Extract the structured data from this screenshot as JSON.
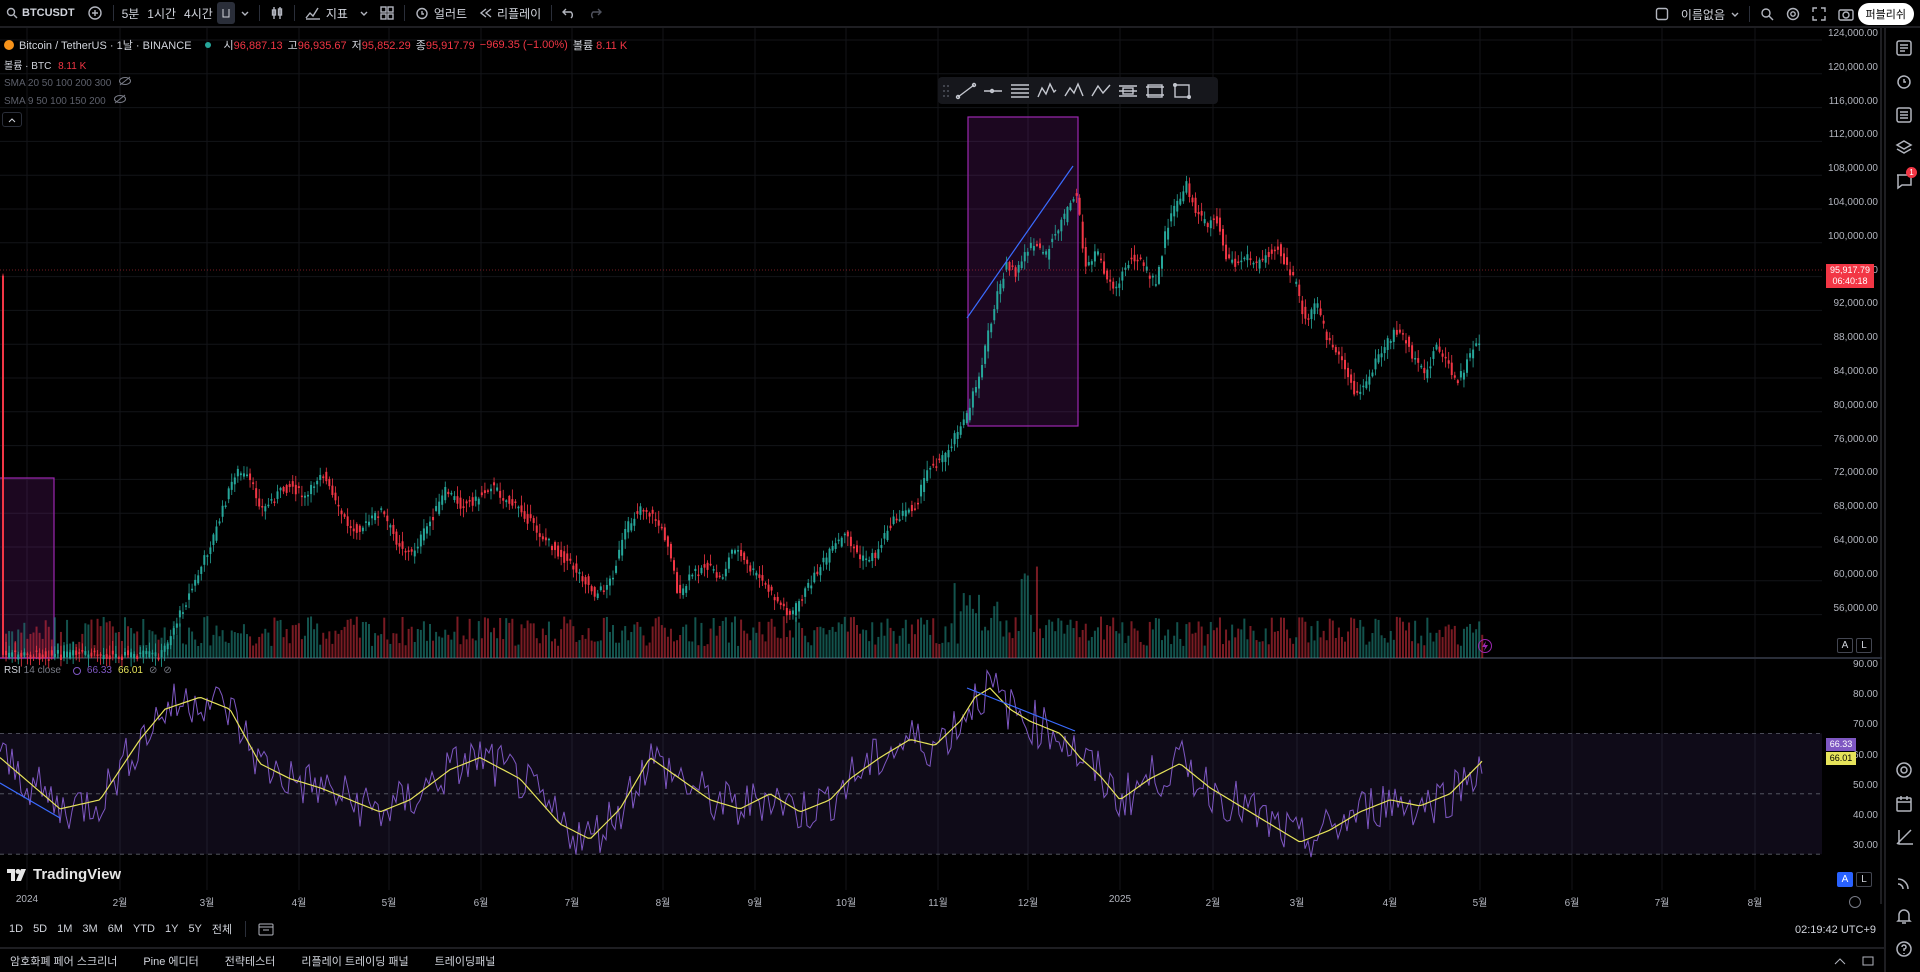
{
  "toolbar": {
    "symbol": "BTCUSDT",
    "intervals": [
      "5분",
      "1시간",
      "4시간"
    ],
    "indicators_label": "지표",
    "alert_label": "얼러트",
    "replay_label": "리플레이",
    "layout_name": "이름없음",
    "publish_label": "퍼블리쉬"
  },
  "legend": {
    "title": "Bitcoin / TetherUS · 1날 · BINANCE",
    "open_label": "시",
    "open": "96,887.13",
    "high_label": "고",
    "high": "96,935.67",
    "low_label": "저",
    "low": "95,852.29",
    "close_label": "종",
    "close": "95,917.79",
    "change": "−969.35 (−1.00%)",
    "volume_label": "볼륨",
    "volume": "8.11 K",
    "volume_row_label": "볼륨 · BTC",
    "volume_row_value": "8.11 K",
    "sma1": "SMA 20 50 100 200 300",
    "sma2": "SMA 9 50 100 150 200"
  },
  "price_axis": [
    "124,000.00",
    "120,000.00",
    "116,000.00",
    "112,000.00",
    "108,000.00",
    "104,000.00",
    "100,000.00",
    "96,000.00",
    "92,000.00",
    "88,000.00",
    "84,000.00",
    "80,000.00",
    "76,000.00",
    "72,000.00",
    "68,000.00",
    "64,000.00",
    "60,000.00",
    "56,000.00"
  ],
  "price_tag": {
    "price": "95,917.79",
    "countdown": "06:40:18"
  },
  "rsi": {
    "label": "RSI",
    "params": "14 close",
    "value": "66.33",
    "ma_value": "66.01",
    "axis": [
      "90.00",
      "80.00",
      "70.00",
      "60.00",
      "50.00",
      "40.00",
      "30.00"
    ]
  },
  "time_axis": [
    "2024",
    "2월",
    "3월",
    "4월",
    "5월",
    "6월",
    "7월",
    "8월",
    "9월",
    "10월",
    "11월",
    "12월",
    "2025",
    "2월",
    "3월",
    "4월",
    "5월",
    "6월",
    "7월",
    "8월"
  ],
  "ranges": [
    "1D",
    "5D",
    "1M",
    "3M",
    "6M",
    "YTD",
    "1Y",
    "5Y",
    "전체"
  ],
  "clock": "02:19:42 UTC+9",
  "logo_text": "TradingView",
  "scale_buttons": [
    "A",
    "L"
  ],
  "alerts_badge": "1",
  "bottom_panels": [
    "암호화폐 페어 스크리너",
    "Pine 에디터",
    "전략테스터",
    "리플레이 트레이딩 패널",
    "트레이딩패널"
  ],
  "colors": {
    "up": "#26a69a",
    "down": "#f23645",
    "rsi": "#7e57c2",
    "rsi_ma": "#e6e35a",
    "box": "#9c27b0"
  }
}
